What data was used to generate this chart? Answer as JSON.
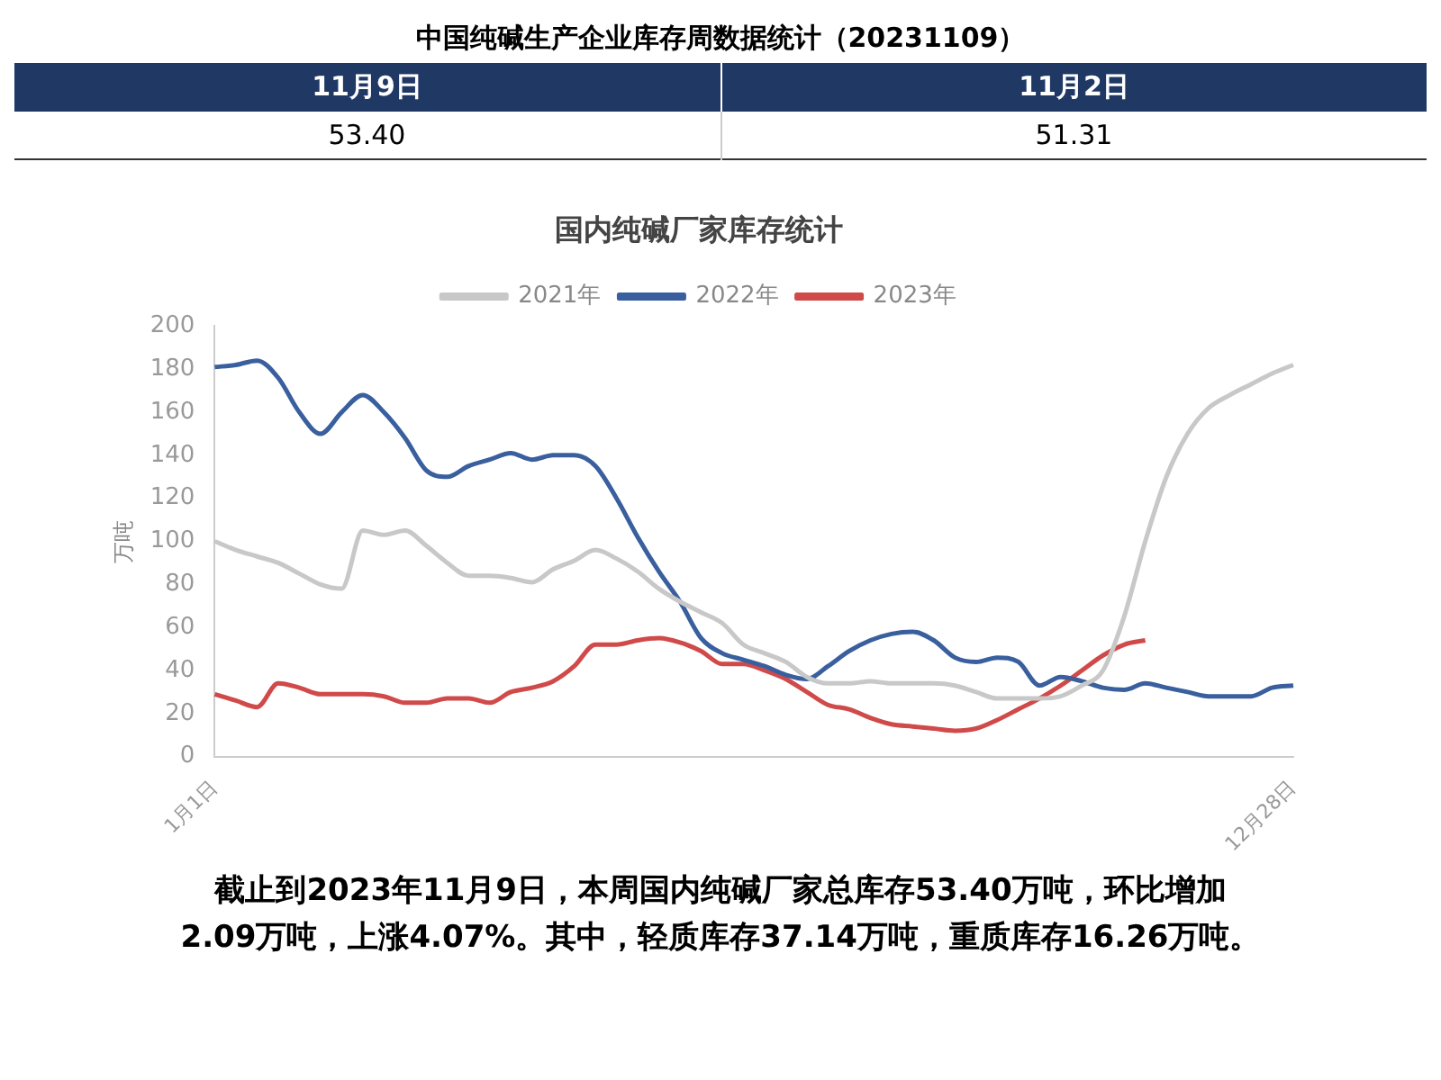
{
  "chart_data": [
    {
      "type": "other",
      "title": "中国纯碱生产企业库存周数据统计（20231109）",
      "annotations": [
        "11月9日",
        "11月2日",
        "53.40",
        "51.31"
      ]
    },
    {
      "type": "line",
      "title": "国内纯碱厂家库存统计",
      "ylabel": "万吨",
      "categories": [
        "1月1日",
        null,
        null,
        null,
        null,
        null,
        null,
        null,
        null,
        null,
        null,
        null,
        null,
        null,
        null,
        null,
        null,
        null,
        null,
        null,
        null,
        null,
        null,
        null,
        null,
        null,
        null,
        null,
        null,
        null,
        null,
        null,
        null,
        null,
        null,
        null,
        null,
        null,
        null,
        null,
        null,
        null,
        null,
        null,
        null,
        null,
        null,
        null,
        null,
        null,
        null,
        "12月28日"
      ],
      "series": [
        {
          "name": "2021年",
          "color": "#c8c8c8",
          "values": [
            100,
            96,
            93,
            90,
            85,
            80,
            78,
            105,
            103,
            105,
            98,
            90,
            84,
            84,
            83,
            81,
            87,
            91,
            96,
            92,
            86,
            78,
            72,
            67,
            62,
            52,
            48,
            44,
            37,
            34,
            34,
            35,
            34,
            34,
            34,
            33,
            30,
            27,
            27,
            27,
            28,
            33,
            40,
            65,
            100,
            130,
            150,
            162,
            168,
            173,
            178,
            182
          ]
        },
        {
          "name": "2022年",
          "color": "#3a5f9e",
          "values": [
            181,
            182,
            184,
            176,
            160,
            150,
            160,
            168,
            160,
            148,
            133,
            130,
            135,
            138,
            141,
            138,
            140,
            140,
            135,
            120,
            102,
            86,
            72,
            55,
            48,
            45,
            42,
            38,
            36,
            42,
            49,
            54,
            57,
            58,
            54,
            46,
            44,
            46,
            44,
            33,
            37,
            35,
            32,
            31,
            34,
            32,
            30,
            28,
            28,
            28,
            32,
            33
          ]
        },
        {
          "name": "2023年",
          "color": "#d04a4a",
          "values": [
            29,
            26,
            23,
            34,
            32,
            29,
            29,
            29,
            28,
            25,
            25,
            27,
            27,
            25,
            30,
            32,
            35,
            42,
            52,
            52,
            54,
            55,
            53,
            49,
            43,
            43,
            40,
            36,
            30,
            24,
            22,
            18,
            15,
            14,
            13,
            12,
            13,
            17,
            22,
            27,
            33,
            40,
            47,
            52,
            54,
            null,
            null,
            null,
            null,
            null,
            null,
            null
          ]
        }
      ],
      "ylim": [
        0,
        200
      ],
      "yticks": [
        0,
        20,
        40,
        60,
        80,
        100,
        120,
        140,
        160,
        180,
        200
      ],
      "grid": false,
      "legend": "top",
      "marker": "none",
      "line_style": "solid",
      "annotations": [
        "截止到2023年11月9日，本周国内纯碱厂家总库存53.40万吨，环比增加2.09万吨，上涨4.07%。其中，轻质库存37.14万吨，重质库存16.26万吨。"
      ]
    }
  ]
}
